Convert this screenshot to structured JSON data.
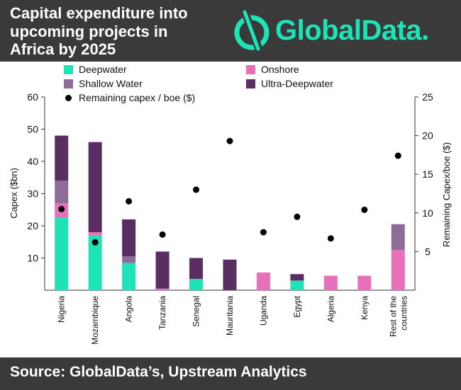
{
  "header": {
    "title_lines": [
      "Capital expenditure into",
      "upcoming projects in",
      "Africa by 2025"
    ],
    "logo_text": "GlobalData."
  },
  "footer": {
    "source": "Source: GlobalData’s, Upstream Analytics"
  },
  "legend": {
    "deepwater": "Deepwater",
    "shallow": "Shallow Water",
    "dots": "Remaining capex / boe ($)",
    "onshore": "Onshore",
    "ultra": "Ultra-Deepwater"
  },
  "colors": {
    "deepwater": "#1ee3b6",
    "onshore": "#e86fba",
    "shallow": "#8f6b9a",
    "ultra": "#5a2e63",
    "header_bg": "#3a3a3a",
    "logo": "#1ee3b6"
  },
  "chart_data": {
    "type": "bar",
    "stacked": true,
    "categories": [
      [
        "Nigeria"
      ],
      [
        "Mozambique"
      ],
      [
        "Angola"
      ],
      [
        "Tanzania"
      ],
      [
        "Senegal"
      ],
      [
        "Mauritania"
      ],
      [
        "Uganda"
      ],
      [
        "Egypt"
      ],
      [
        "Algeria"
      ],
      [
        "Kenya"
      ],
      [
        "Rest of the",
        "countries"
      ]
    ],
    "series": [
      {
        "key": "deepwater",
        "name": "Deepwater",
        "values": [
          22.5,
          17,
          8.5,
          0,
          3.5,
          0,
          0,
          3,
          0,
          0,
          0
        ]
      },
      {
        "key": "onshore",
        "name": "Onshore",
        "values": [
          4.5,
          1,
          0,
          0.5,
          0,
          0,
          5.5,
          0,
          4.5,
          4.5,
          12.5
        ]
      },
      {
        "key": "shallow",
        "name": "Shallow Water",
        "values": [
          7,
          0,
          2,
          0,
          0,
          0,
          0,
          0,
          0,
          0,
          8
        ]
      },
      {
        "key": "ultra",
        "name": "Ultra-Deepwater",
        "values": [
          14,
          28,
          11.5,
          11.5,
          6.5,
          9.5,
          0,
          2,
          0,
          0,
          0
        ]
      }
    ],
    "secondary_series": {
      "name": "Remaining capex / boe ($)",
      "values": [
        10.5,
        6.2,
        11.5,
        7.2,
        13,
        19.3,
        7.5,
        9.5,
        6.7,
        10.4,
        17.4
      ]
    },
    "ylabel": "Capex ($bn)",
    "ylim": [
      0,
      60
    ],
    "yticks": [
      10,
      20,
      30,
      40,
      50,
      60
    ],
    "y2label": "Remaining Capex/boe ($)",
    "y2lim": [
      0,
      25
    ],
    "y2ticks": [
      5,
      10,
      15,
      20,
      25
    ],
    "grid": false,
    "legend_position": "top"
  }
}
